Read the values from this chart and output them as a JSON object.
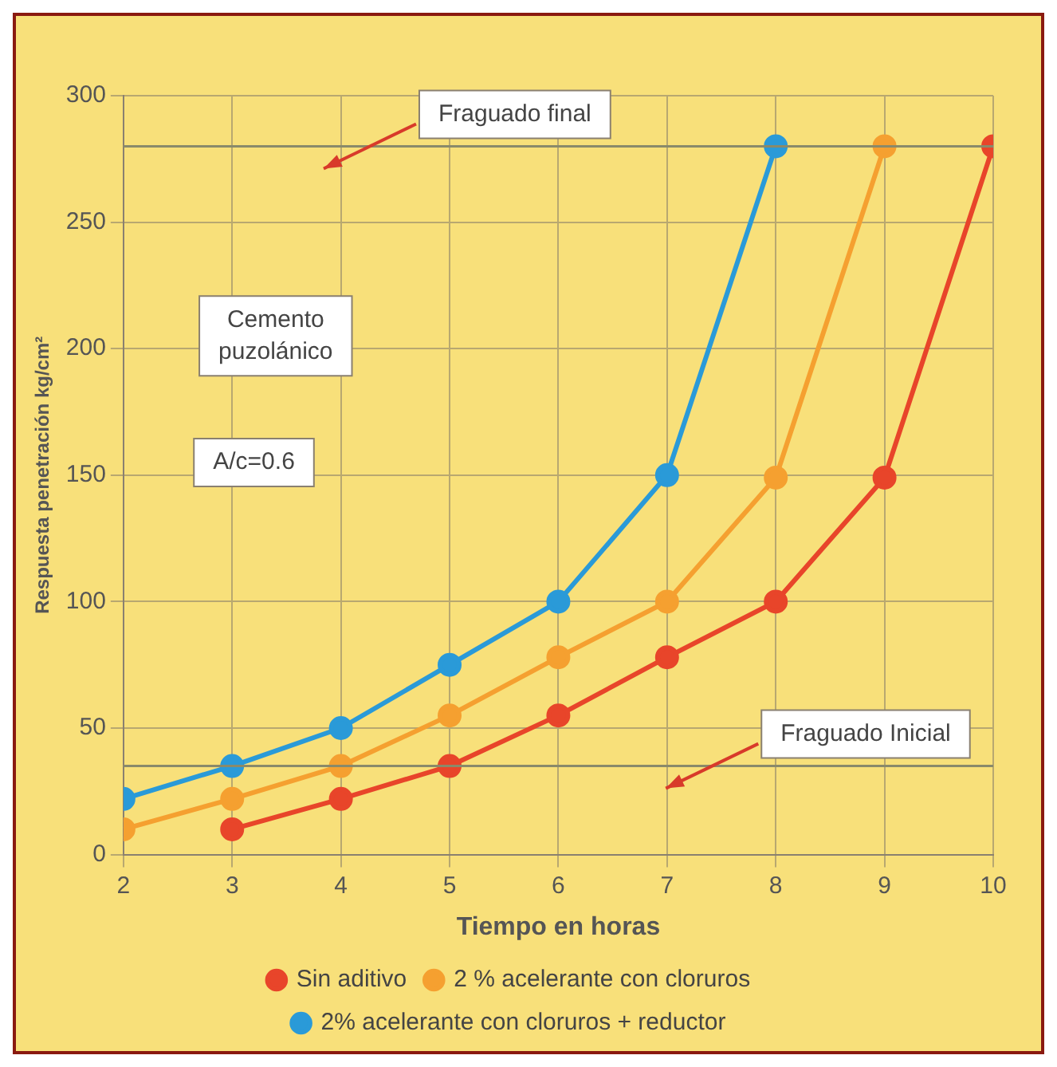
{
  "chart_data": {
    "type": "line",
    "xlabel": "Tiempo en horas",
    "ylabel": "Respuesta penetración kg/cm²",
    "xlim": [
      2,
      10
    ],
    "xticks": [
      2,
      3,
      4,
      5,
      6,
      7,
      8,
      9,
      10
    ],
    "ylim": [
      0,
      300
    ],
    "yticks": [
      0,
      50,
      100,
      150,
      200,
      250,
      300
    ],
    "grid": true,
    "legend": "bottom",
    "marker": "circle",
    "line_style": "solid",
    "series": [
      {
        "name": "Sin aditivo",
        "color": "#e8452a",
        "x": [
          3,
          4,
          5,
          6,
          7,
          8,
          9,
          10
        ],
        "values": [
          10,
          22,
          35,
          55,
          78,
          100,
          149,
          280
        ]
      },
      {
        "name": "2 % acelerante con cloruros",
        "color": "#f5a030",
        "x": [
          2,
          3,
          4,
          5,
          6,
          7,
          8,
          9
        ],
        "values": [
          10,
          22,
          35,
          55,
          78,
          100,
          149,
          280
        ]
      },
      {
        "name": "2% acelerante con cloruros + reductor",
        "color": "#2a9ad8",
        "x": [
          2,
          3,
          4,
          5,
          6,
          7,
          8
        ],
        "values": [
          22,
          35,
          50,
          75,
          100,
          150,
          280
        ]
      }
    ],
    "ref_lines": [
      {
        "axis": "y",
        "value": 280,
        "label": "Fraguado final",
        "color": "#8a8a6a"
      },
      {
        "axis": "y",
        "value": 35,
        "label": "Fraguado Inicial",
        "color": "#8a8a6a"
      }
    ],
    "annotations": [
      "Cemento\npuzolánico",
      "A/c=0.6"
    ]
  }
}
